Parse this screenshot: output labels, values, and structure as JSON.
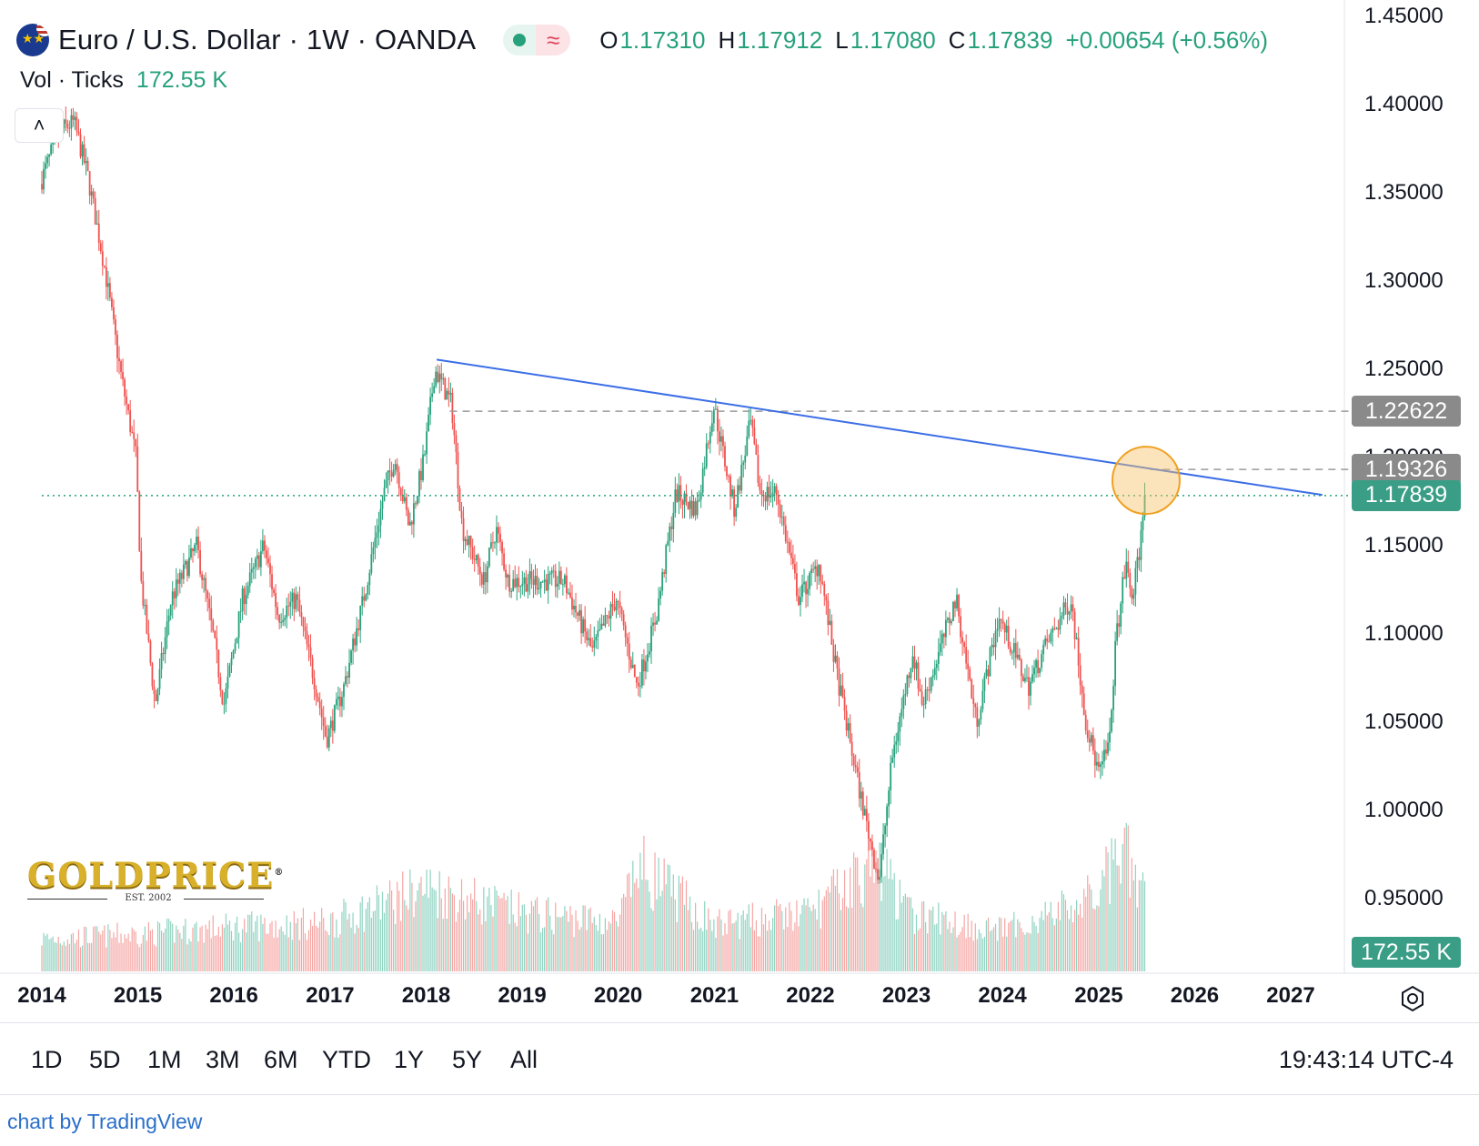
{
  "header": {
    "title": "Euro / U.S. Dollar · 1W · OANDA",
    "ohlc": [
      {
        "key": "O",
        "value": "1.17310"
      },
      {
        "key": "H",
        "value": "1.17912"
      },
      {
        "key": "L",
        "value": "1.17080"
      },
      {
        "key": "C",
        "value": "1.17839"
      }
    ],
    "change": "+0.00654 (+0.56%)",
    "status_icon": "market-status-dot",
    "wave_glyph": "≈"
  },
  "volume": {
    "label": "Vol · Ticks",
    "value": "172.55 K"
  },
  "price_tags": {
    "resistance_high": "1.22622",
    "resistance_low": "1.19326",
    "last_price": "1.17839",
    "last_volume": "172.55 K"
  },
  "time_axis": [
    "2014",
    "2015",
    "2016",
    "2017",
    "2018",
    "2019",
    "2020",
    "2021",
    "2022",
    "2023",
    "2024",
    "2025",
    "2026",
    "2027"
  ],
  "range_buttons": [
    "1D",
    "5D",
    "1M",
    "3M",
    "6M",
    "YTD",
    "1Y",
    "5Y",
    "All"
  ],
  "clock": "19:43:14 UTC-4",
  "attribution": "chart by TradingView",
  "logo": {
    "name": "GOLDPRICE",
    "tagline": "EST. 2002",
    "registered": "®"
  },
  "colors": {
    "up": "#26a17b",
    "down": "#ef5350",
    "trendline": "#3b6ee6",
    "highlight": "#f5b63c",
    "tag_gray": "#8a8a8a",
    "tag_green": "#3a9e87"
  },
  "chart_data": {
    "type": "candlestick",
    "interval": "1W",
    "y_axis_labels": [
      "1.45000",
      "1.40000",
      "1.35000",
      "1.30000",
      "1.25000",
      "1.20000",
      "1.15000",
      "1.10000",
      "1.05000",
      "1.00000",
      "0.95000"
    ],
    "ylim": [
      0.92,
      1.455
    ],
    "grid": false,
    "price_path": [
      [
        "2014-01-01",
        1.355
      ],
      [
        "2014-03-15",
        1.385
      ],
      [
        "2014-05-10",
        1.39
      ],
      [
        "2014-07-01",
        1.36
      ],
      [
        "2014-09-01",
        1.31
      ],
      [
        "2014-11-01",
        1.25
      ],
      [
        "2015-01-01",
        1.2
      ],
      [
        "2015-01-20",
        1.13
      ],
      [
        "2015-03-15",
        1.06
      ],
      [
        "2015-05-15",
        1.12
      ],
      [
        "2015-08-20",
        1.15
      ],
      [
        "2015-10-20",
        1.1
      ],
      [
        "2015-12-01",
        1.06
      ],
      [
        "2016-02-10",
        1.12
      ],
      [
        "2016-05-01",
        1.15
      ],
      [
        "2016-06-25",
        1.11
      ],
      [
        "2016-09-01",
        1.12
      ],
      [
        "2016-11-15",
        1.07
      ],
      [
        "2016-12-25",
        1.04
      ],
      [
        "2017-03-01",
        1.07
      ],
      [
        "2017-05-15",
        1.12
      ],
      [
        "2017-08-01",
        1.18
      ],
      [
        "2017-09-10",
        1.2
      ],
      [
        "2017-11-05",
        1.16
      ],
      [
        "2018-01-01",
        1.2
      ],
      [
        "2018-02-10",
        1.25
      ],
      [
        "2018-04-15",
        1.23
      ],
      [
        "2018-05-25",
        1.16
      ],
      [
        "2018-08-15",
        1.13
      ],
      [
        "2018-10-01",
        1.16
      ],
      [
        "2018-11-15",
        1.13
      ],
      [
        "2019-03-01",
        1.13
      ],
      [
        "2019-06-15",
        1.13
      ],
      [
        "2019-10-01",
        1.09
      ],
      [
        "2020-01-01",
        1.12
      ],
      [
        "2020-03-20",
        1.07
      ],
      [
        "2020-06-01",
        1.11
      ],
      [
        "2020-08-15",
        1.18
      ],
      [
        "2020-11-01",
        1.17
      ],
      [
        "2021-01-05",
        1.23
      ],
      [
        "2021-03-25",
        1.17
      ],
      [
        "2021-05-25",
        1.22
      ],
      [
        "2021-07-01",
        1.18
      ],
      [
        "2021-09-01",
        1.18
      ],
      [
        "2021-11-25",
        1.12
      ],
      [
        "2022-02-10",
        1.14
      ],
      [
        "2022-04-15",
        1.08
      ],
      [
        "2022-07-15",
        1.01
      ],
      [
        "2022-09-26",
        0.96
      ],
      [
        "2022-11-15",
        1.03
      ],
      [
        "2023-02-01",
        1.09
      ],
      [
        "2023-03-10",
        1.06
      ],
      [
        "2023-07-15",
        1.12
      ],
      [
        "2023-10-01",
        1.05
      ],
      [
        "2023-12-25",
        1.11
      ],
      [
        "2024-04-15",
        1.07
      ],
      [
        "2024-06-10",
        1.09
      ],
      [
        "2024-09-25",
        1.12
      ],
      [
        "2024-11-20",
        1.05
      ],
      [
        "2025-01-10",
        1.02
      ],
      [
        "2025-02-20",
        1.04
      ],
      [
        "2025-03-10",
        1.09
      ],
      [
        "2025-04-20",
        1.14
      ],
      [
        "2025-05-15",
        1.12
      ],
      [
        "2025-06-15",
        1.15
      ],
      [
        "2025-06-30",
        1.17839
      ]
    ],
    "trendline": {
      "from": [
        "2018-02-10",
        1.2555
      ],
      "to": [
        "2027-05-01",
        1.1788
      ]
    },
    "horizontal_levels": [
      {
        "value": 1.22622,
        "style": "dashed",
        "from": "2018-04-01"
      },
      {
        "value": 1.19326,
        "style": "dashed",
        "from": "2025-07-15"
      },
      {
        "value": 1.17839,
        "style": "dotted",
        "from": "2014-01-01"
      }
    ],
    "highlight_circle": {
      "date": "2025-06-30",
      "value": 1.19326
    },
    "volume_profile": [
      [
        "2014-01-01",
        0.28
      ],
      [
        "2015-01-01",
        0.32
      ],
      [
        "2016-01-01",
        0.38
      ],
      [
        "2017-01-01",
        0.42
      ],
      [
        "2018-01-01",
        0.72
      ],
      [
        "2019-01-01",
        0.5
      ],
      [
        "2020-01-01",
        0.42
      ],
      [
        "2020-03-20",
        0.9
      ],
      [
        "2021-01-01",
        0.4
      ],
      [
        "2022-01-01",
        0.5
      ],
      [
        "2022-07-15",
        0.85
      ],
      [
        "2022-10-01",
        0.9
      ],
      [
        "2023-01-01",
        0.5
      ],
      [
        "2024-01-01",
        0.35
      ],
      [
        "2024-11-15",
        0.6
      ],
      [
        "2025-04-10",
        1.0
      ],
      [
        "2025-06-30",
        0.6
      ]
    ]
  }
}
